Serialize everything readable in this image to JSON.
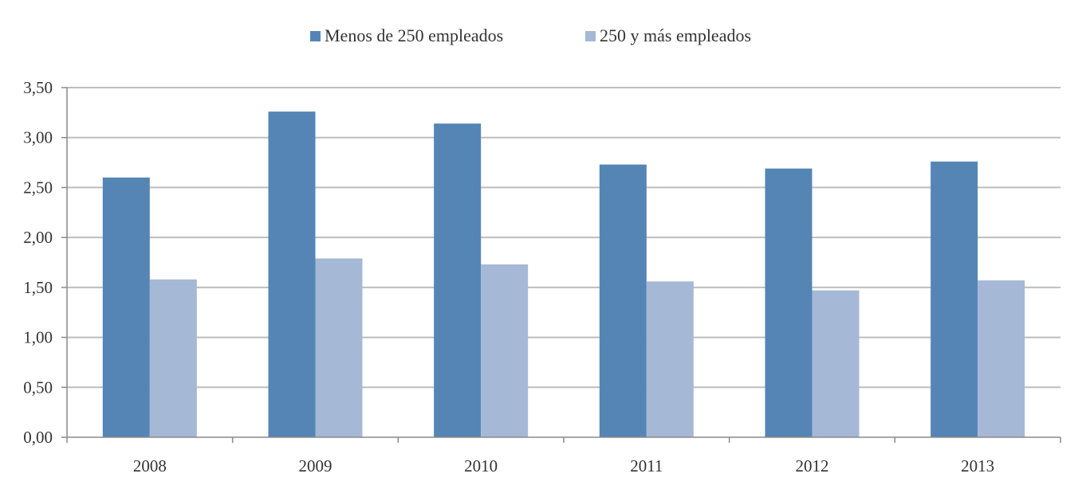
{
  "chart_data": {
    "type": "bar",
    "title": "",
    "xlabel": "",
    "ylabel": "",
    "categories": [
      "2008",
      "2009",
      "2010",
      "2011",
      "2012",
      "2013"
    ],
    "series": [
      {
        "name": "Menos de 250 empleados",
        "color": "#5585b5",
        "values": [
          2.6,
          3.26,
          3.14,
          2.73,
          2.69,
          2.76
        ]
      },
      {
        "name": "250 y más empleados",
        "color": "#a5b8d6",
        "values": [
          1.58,
          1.79,
          1.73,
          1.56,
          1.47,
          1.57
        ]
      }
    ],
    "ylim": [
      0,
      3.5
    ],
    "yticks": [
      "0,00",
      "0,50",
      "1,00",
      "1,50",
      "2,00",
      "2,50",
      "3,00",
      "3,50"
    ],
    "grid": true,
    "legend_position": "top-center"
  }
}
